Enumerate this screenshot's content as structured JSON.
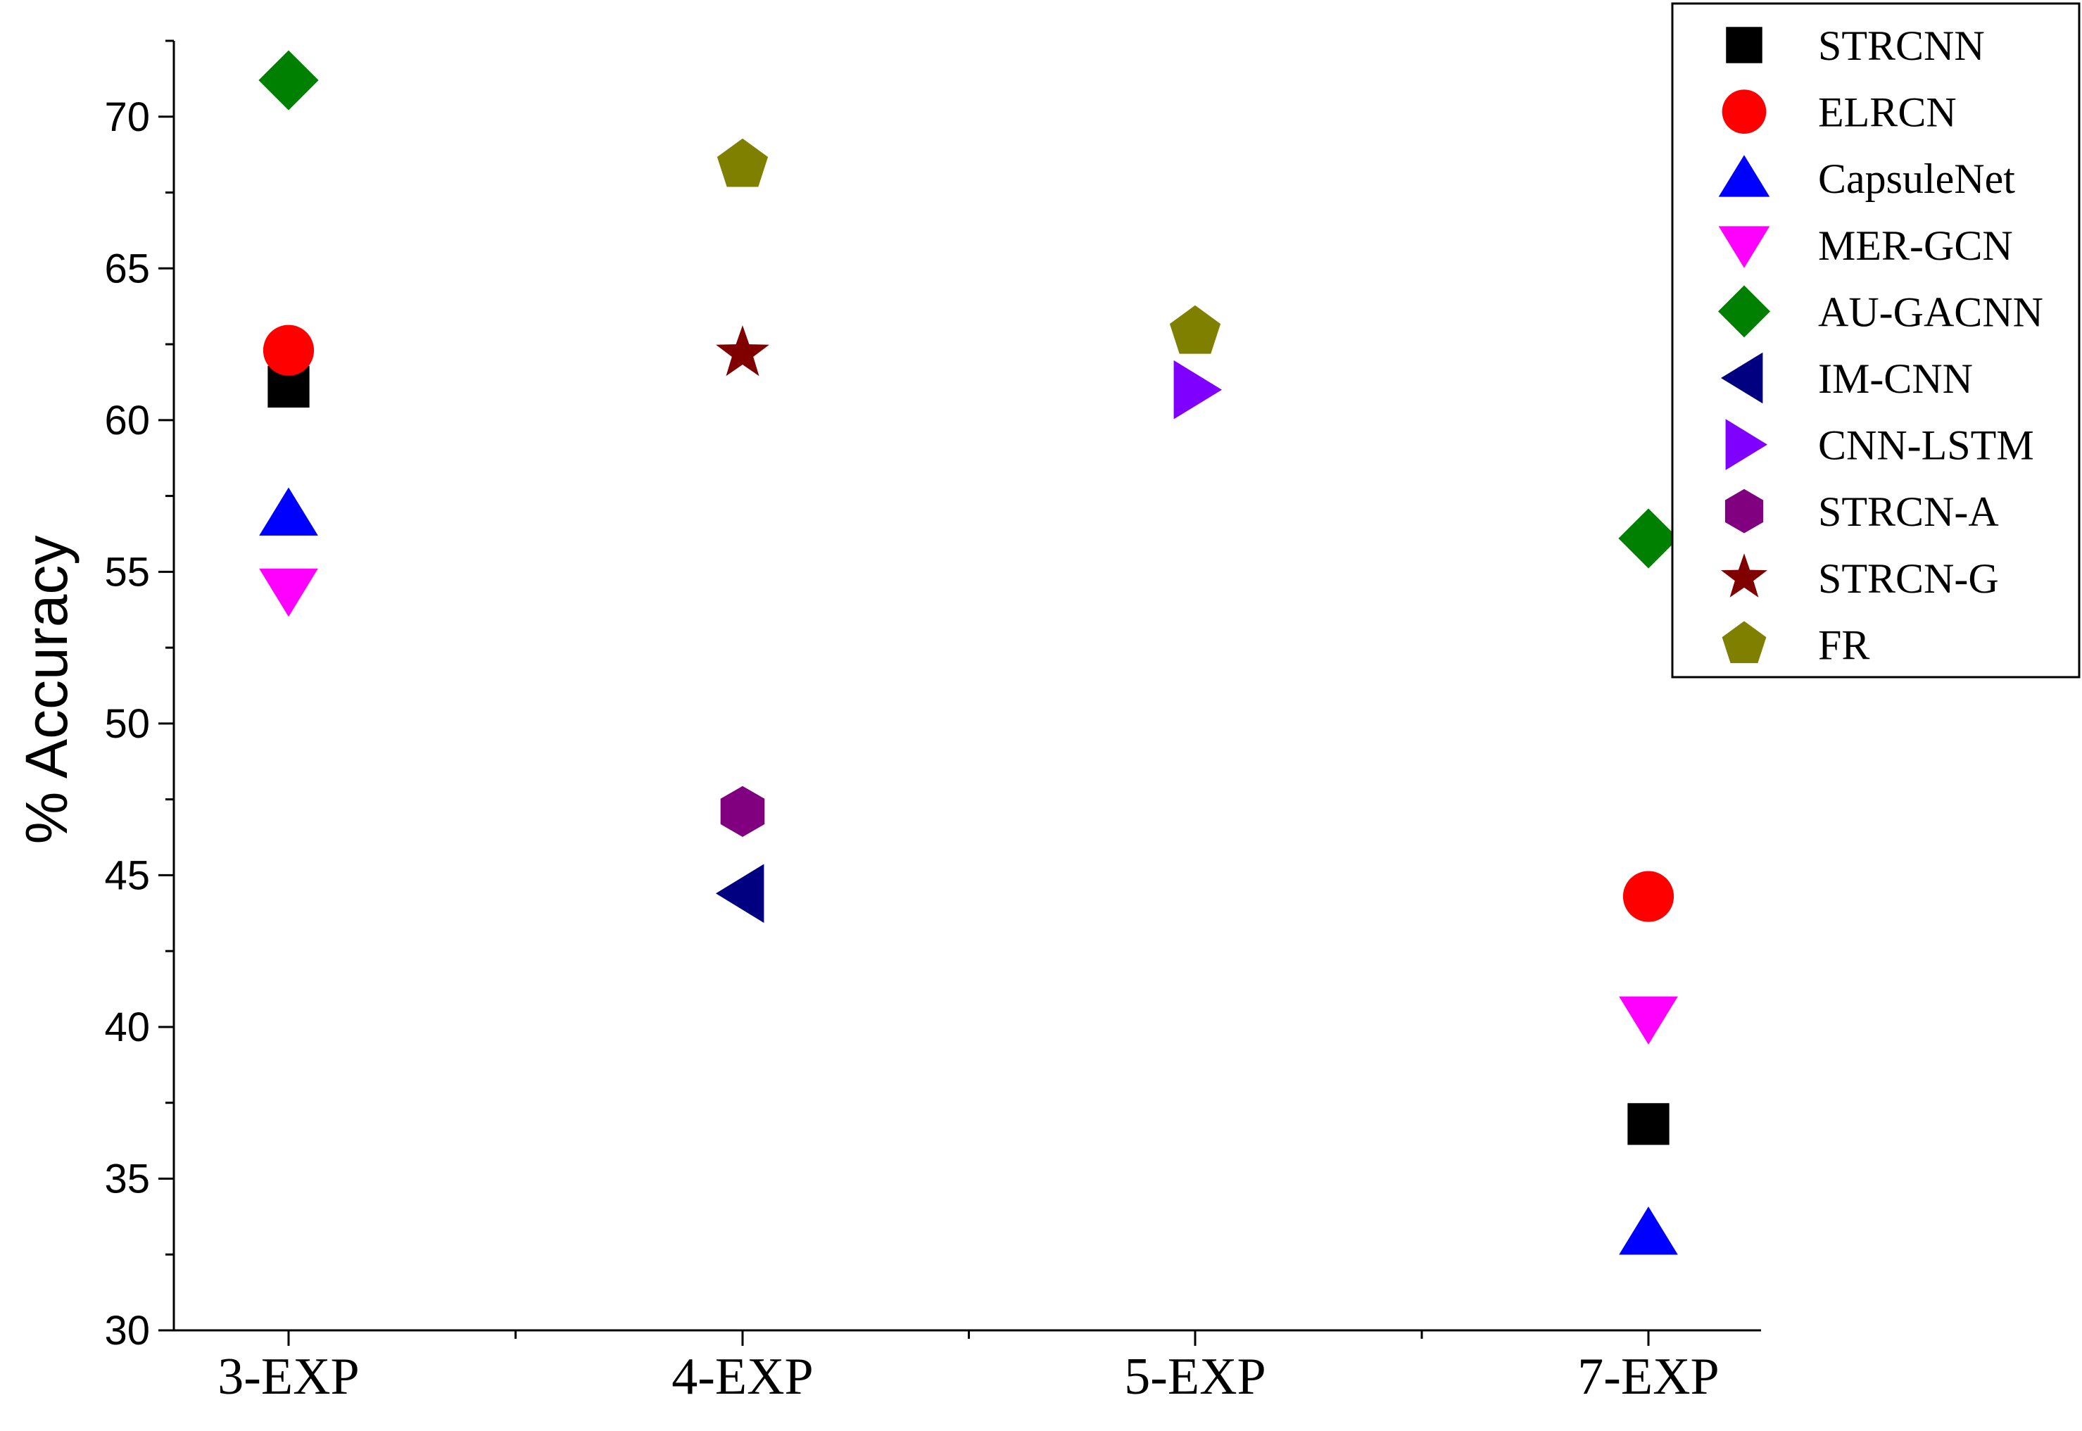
{
  "chart_data": {
    "type": "scatter",
    "categories": [
      "3-EXP",
      "4-EXP",
      "5-EXP",
      "7-EXP"
    ],
    "ylabel": "% Accuracy",
    "xlabel": "",
    "title": "",
    "ylim": [
      30,
      72.5
    ],
    "yticks": [
      30,
      35,
      40,
      45,
      50,
      55,
      60,
      65,
      70
    ],
    "grid": false,
    "legend_position": "top-right",
    "series": [
      {
        "name": "STRCNN",
        "marker": "square",
        "color": "#000000",
        "values": [
          61.1,
          null,
          null,
          36.8
        ]
      },
      {
        "name": "ELRCN",
        "marker": "circle",
        "color": "#ff0000",
        "values": [
          62.3,
          null,
          null,
          44.3
        ]
      },
      {
        "name": "CapsuleNet",
        "marker": "triangle-up",
        "color": "#0000ff",
        "values": [
          56.9,
          null,
          null,
          33.2
        ]
      },
      {
        "name": "MER-GCN",
        "marker": "triangle-down",
        "color": "#ff00ff",
        "values": [
          54.4,
          null,
          null,
          40.3
        ]
      },
      {
        "name": "AU-GACNN",
        "marker": "diamond",
        "color": "#008000",
        "values": [
          71.2,
          null,
          null,
          56.1
        ]
      },
      {
        "name": "IM-CNN",
        "marker": "triangle-left",
        "color": "#000080",
        "values": [
          null,
          44.4,
          null,
          null
        ]
      },
      {
        "name": "CNN-LSTM",
        "marker": "triangle-right",
        "color": "#8000ff",
        "values": [
          null,
          null,
          61.0,
          null
        ]
      },
      {
        "name": "STRCN-A",
        "marker": "hexagon",
        "color": "#800080",
        "values": [
          null,
          47.1,
          null,
          null
        ]
      },
      {
        "name": "STRCN-G",
        "marker": "star",
        "color": "#800000",
        "values": [
          null,
          62.2,
          null,
          null
        ]
      },
      {
        "name": "FR",
        "marker": "pentagon",
        "color": "#808000",
        "values": [
          null,
          68.4,
          62.9,
          null
        ]
      }
    ]
  }
}
